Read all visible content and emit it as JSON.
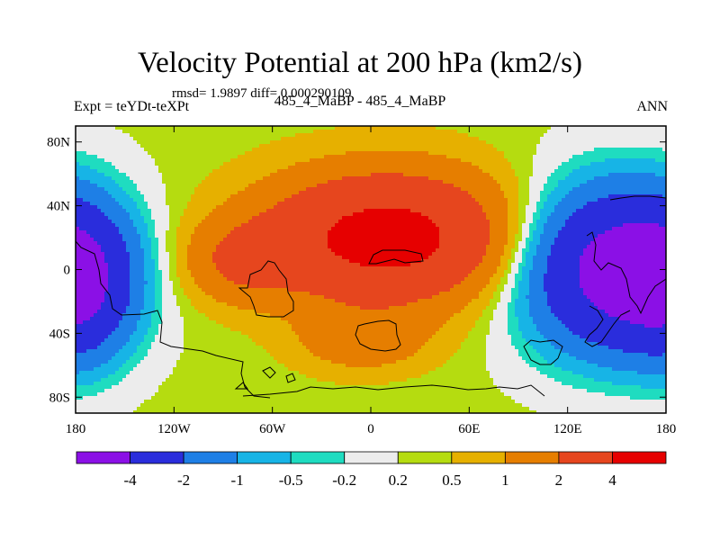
{
  "chart_data": {
    "type": "heatmap",
    "title": "Velocity Potential at 200 hPa (km2/s)",
    "subtitle": "rmsd= 1.9897 diff= 0.000290109",
    "left_label": "Expt = teYDt-teXPt",
    "center_label": "485_4_MaBP - 485_4_MaBP",
    "right_label": "ANN",
    "x_axis": {
      "range": [
        -180,
        180
      ],
      "ticks": [
        -180,
        -120,
        -60,
        0,
        60,
        120,
        180
      ],
      "tick_labels": [
        "180",
        "120W",
        "60W",
        "0",
        "60E",
        "120E",
        "180"
      ]
    },
    "y_axis": {
      "range": [
        -90,
        90
      ],
      "ticks": [
        80,
        40,
        0,
        -40,
        -80
      ],
      "tick_labels": [
        "80N",
        "40N",
        "0",
        "40S",
        "80S"
      ]
    },
    "colorbar": {
      "levels": [
        "-4",
        "-2",
        "-1",
        "-0.5",
        "-0.2",
        "0.2",
        "0.5",
        "1",
        "2",
        "4"
      ],
      "level_values": [
        -4,
        -2,
        -1,
        -0.5,
        -0.2,
        0.2,
        0.5,
        1,
        2,
        4
      ],
      "colors": [
        "#8b10e6",
        "#2a2ddc",
        "#1e7fe6",
        "#17b4e6",
        "#1fdcc0",
        "#ececec",
        "#b5dc10",
        "#e6b000",
        "#e67e00",
        "#e6461e",
        "#e60000"
      ]
    },
    "field": {
      "description_free": true,
      "centers": [
        {
          "lon": 10,
          "lat": 20,
          "amp": 4.6,
          "rlon": 75,
          "rlat": 40
        },
        {
          "lon": -80,
          "lat": 5,
          "amp": 1.5,
          "rlon": 35,
          "rlat": 25
        },
        {
          "lon": -5,
          "lat": -45,
          "amp": 1.2,
          "rlon": 40,
          "rlat": 20
        },
        {
          "lon": 150,
          "lat": 0,
          "amp": -5.5,
          "rlon": 55,
          "rlat": 50
        },
        {
          "lon": -175,
          "lat": -10,
          "amp": -2.5,
          "rlon": 30,
          "rlat": 45
        }
      ]
    }
  }
}
